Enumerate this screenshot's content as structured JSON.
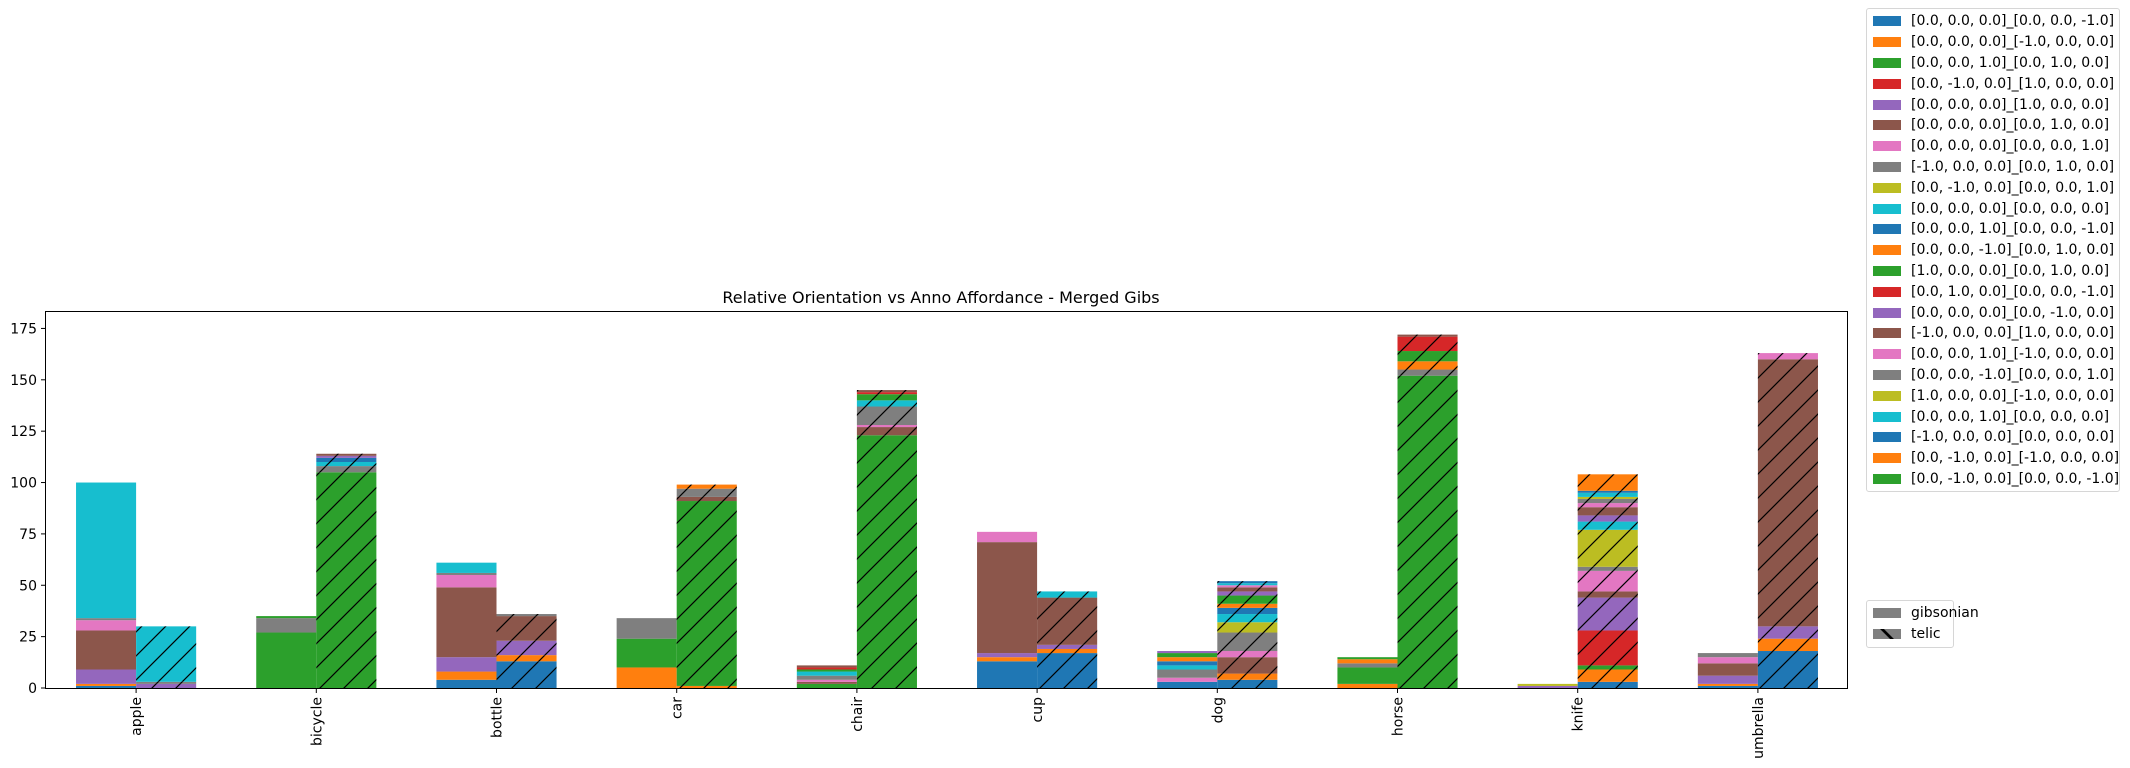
{
  "chart_data": {
    "type": "bar",
    "stacked": true,
    "title": "Relative Orientation vs Anno Affordance - Merged Gibs",
    "xlabel": "",
    "ylabel": "",
    "ylim": [
      0,
      183
    ],
    "yticks": [
      0,
      25,
      50,
      75,
      100,
      125,
      150,
      175
    ],
    "categories": [
      "apple",
      "bicycle",
      "bottle",
      "car",
      "chair",
      "cup",
      "dog",
      "horse",
      "knife",
      "umbrella"
    ],
    "groups": [
      "gibsonian",
      "telic"
    ],
    "group_styles": {
      "gibsonian": "solid",
      "telic": "hatched"
    },
    "series": [
      {
        "name": "[0.0, 0.0, 0.0]_[0.0, 0.0, -1.0]",
        "color": "#1f77b4",
        "gibsonian": [
          1,
          0,
          4,
          0,
          0,
          13,
          3,
          0,
          0,
          1
        ],
        "telic": [
          0,
          0,
          13,
          0,
          0,
          17,
          4,
          0,
          3,
          18
        ]
      },
      {
        "name": "[0.0, 0.0, 0.0]_[-1.0, 0.0, 0.0]",
        "color": "#ff7f0e",
        "gibsonian": [
          1,
          0,
          4,
          10,
          0,
          2,
          0,
          2,
          0,
          1
        ],
        "telic": [
          0,
          0,
          3,
          1,
          0,
          2,
          3,
          0,
          6,
          6
        ]
      },
      {
        "name": "[0.0, 0.0, 1.0]_[0.0, 1.0, 0.0]",
        "color": "#2ca02c",
        "gibsonian": [
          0,
          27,
          0,
          14,
          2,
          0,
          0,
          8,
          0,
          0
        ],
        "telic": [
          0,
          105,
          0,
          90,
          123,
          0,
          0,
          152,
          2,
          0
        ]
      },
      {
        "name": "[0.0, -1.0, 0.0]_[1.0, 0.0, 0.0]",
        "color": "#d62728",
        "gibsonian": [
          0,
          0,
          0,
          0,
          0,
          0,
          0,
          0,
          0,
          0
        ],
        "telic": [
          0,
          0,
          0,
          0,
          0,
          0,
          0,
          0,
          17,
          0
        ]
      },
      {
        "name": "[0.0, 0.0, 0.0]_[1.0, 0.0, 0.0]",
        "color": "#9467bd",
        "gibsonian": [
          7,
          0,
          7,
          0,
          0,
          2,
          0,
          0,
          1,
          4
        ],
        "telic": [
          2,
          0,
          7,
          0,
          0,
          2,
          0,
          0,
          16,
          6
        ]
      },
      {
        "name": "[0.0, 0.0, 0.0]_[0.0, 1.0, 0.0]",
        "color": "#8c564b",
        "gibsonian": [
          19,
          0,
          34,
          0,
          1,
          54,
          0,
          0,
          0,
          6
        ],
        "telic": [
          0,
          0,
          12,
          2,
          4,
          23,
          8,
          0,
          3,
          130
        ]
      },
      {
        "name": "[0.0, 0.0, 0.0]_[0.0, 0.0, 1.0]",
        "color": "#e377c2",
        "gibsonian": [
          5,
          0,
          6,
          0,
          1,
          5,
          2,
          0,
          0,
          3
        ],
        "telic": [
          0,
          0,
          0,
          0,
          1,
          0,
          3,
          0,
          10,
          3
        ]
      },
      {
        "name": "[-1.0, 0.0, 0.0]_[0.0, 1.0, 0.0]",
        "color": "#7f7f7f",
        "gibsonian": [
          1,
          7,
          1,
          10,
          2,
          0,
          4,
          2,
          0,
          2
        ],
        "telic": [
          1,
          3,
          1,
          4,
          9,
          0,
          9,
          3,
          2,
          0
        ]
      },
      {
        "name": "[0.0, -1.0, 0.0]_[0.0, 0.0, 1.0]",
        "color": "#bcbd22",
        "gibsonian": [
          0,
          0,
          0,
          0,
          0,
          0,
          0,
          0,
          1,
          0
        ],
        "telic": [
          0,
          0,
          0,
          0,
          0,
          0,
          5,
          0,
          18,
          0
        ]
      },
      {
        "name": "[0.0, 0.0, 0.0]_[0.0, 0.0, 0.0]",
        "color": "#17becf",
        "gibsonian": [
          66,
          0,
          5,
          0,
          2,
          0,
          2,
          0,
          0,
          0
        ],
        "telic": [
          27,
          2,
          0,
          0,
          3,
          3,
          4,
          0,
          4,
          0
        ]
      },
      {
        "name": "[0.0, 0.0, 1.0]_[0.0, 0.0, -1.0]",
        "color": "#1f77b4",
        "gibsonian": [
          0,
          0,
          0,
          0,
          0,
          0,
          2,
          0,
          0,
          0
        ],
        "telic": [
          0,
          2,
          0,
          0,
          0,
          0,
          3,
          0,
          0,
          0
        ]
      },
      {
        "name": "[0.0, 0.0, -1.0]_[0.0, 1.0, 0.0]",
        "color": "#ff7f0e",
        "gibsonian": [
          0,
          0,
          0,
          0,
          0,
          0,
          2,
          2,
          0,
          0
        ],
        "telic": [
          0,
          0,
          0,
          2,
          0,
          0,
          2,
          4,
          0,
          0
        ]
      },
      {
        "name": "[1.0, 0.0, 0.0]_[0.0, 1.0, 0.0]",
        "color": "#2ca02c",
        "gibsonian": [
          0,
          1,
          0,
          0,
          1,
          0,
          2,
          1,
          0,
          0
        ],
        "telic": [
          0,
          0,
          0,
          0,
          3,
          0,
          4,
          5,
          0,
          0
        ]
      },
      {
        "name": "[0.0, 1.0, 0.0]_[0.0, 0.0, -1.0]",
        "color": "#d62728",
        "gibsonian": [
          0,
          0,
          0,
          0,
          1,
          0,
          0,
          0,
          0,
          0
        ],
        "telic": [
          0,
          0,
          0,
          0,
          1,
          0,
          0,
          7,
          0,
          0
        ]
      },
      {
        "name": "[0.0, 0.0, 0.0]_[0.0, -1.0, 0.0]",
        "color": "#9467bd",
        "gibsonian": [
          0,
          0,
          0,
          0,
          0,
          0,
          1,
          0,
          0,
          0
        ],
        "telic": [
          0,
          1,
          0,
          0,
          0,
          0,
          2,
          0,
          3,
          0
        ]
      },
      {
        "name": "[-1.0, 0.0, 0.0]_[1.0, 0.0, 0.0]",
        "color": "#8c564b",
        "gibsonian": [
          0,
          0,
          0,
          0,
          1,
          0,
          0,
          0,
          0,
          0
        ],
        "telic": [
          0,
          1,
          0,
          0,
          1,
          0,
          2,
          1,
          4,
          0
        ]
      },
      {
        "name": "[0.0, 0.0, 1.0]_[-1.0, 0.0, 0.0]",
        "color": "#e377c2",
        "gibsonian": [
          0,
          0,
          0,
          0,
          0,
          0,
          0,
          0,
          0,
          0
        ],
        "telic": [
          0,
          0,
          0,
          0,
          0,
          0,
          1,
          0,
          2,
          0
        ]
      },
      {
        "name": "[0.0, 0.0, -1.0]_[0.0, 0.0, 1.0]",
        "color": "#7f7f7f",
        "gibsonian": [
          0,
          0,
          0,
          0,
          0,
          0,
          0,
          0,
          0,
          0
        ],
        "telic": [
          0,
          0,
          0,
          0,
          0,
          0,
          0,
          0,
          2,
          0
        ]
      },
      {
        "name": "[1.0, 0.0, 0.0]_[-1.0, 0.0, 0.0]",
        "color": "#bcbd22",
        "gibsonian": [
          0,
          0,
          0,
          0,
          0,
          0,
          0,
          0,
          0,
          0
        ],
        "telic": [
          0,
          0,
          0,
          0,
          0,
          0,
          0,
          0,
          1,
          0
        ]
      },
      {
        "name": "[0.0, 0.0, 1.0]_[0.0, 0.0, 0.0]",
        "color": "#17becf",
        "gibsonian": [
          0,
          0,
          0,
          0,
          0,
          0,
          0,
          0,
          0,
          0
        ],
        "telic": [
          0,
          0,
          0,
          0,
          0,
          0,
          1,
          0,
          2,
          0
        ]
      },
      {
        "name": "[-1.0, 0.0, 0.0]_[0.0, 0.0, 0.0]",
        "color": "#1f77b4",
        "gibsonian": [
          0,
          0,
          0,
          0,
          0,
          0,
          0,
          0,
          0,
          0
        ],
        "telic": [
          0,
          0,
          0,
          0,
          0,
          0,
          1,
          0,
          1,
          0
        ]
      },
      {
        "name": "[0.0, -1.0, 0.0]_[-1.0, 0.0, 0.0]",
        "color": "#ff7f0e",
        "gibsonian": [
          0,
          0,
          0,
          0,
          0,
          0,
          0,
          0,
          0,
          0
        ],
        "telic": [
          0,
          0,
          0,
          0,
          0,
          0,
          0,
          0,
          8,
          0
        ]
      },
      {
        "name": "[0.0, -1.0, 0.0]_[0.0, 0.0, -1.0]",
        "color": "#2ca02c",
        "gibsonian": [
          0,
          0,
          0,
          0,
          0,
          0,
          0,
          0,
          0,
          0
        ],
        "telic": [
          0,
          0,
          0,
          0,
          0,
          0,
          0,
          0,
          0,
          0
        ]
      }
    ],
    "legend": {
      "placement": "outside-right",
      "group_legend_placement": "outside-lower-right"
    }
  }
}
